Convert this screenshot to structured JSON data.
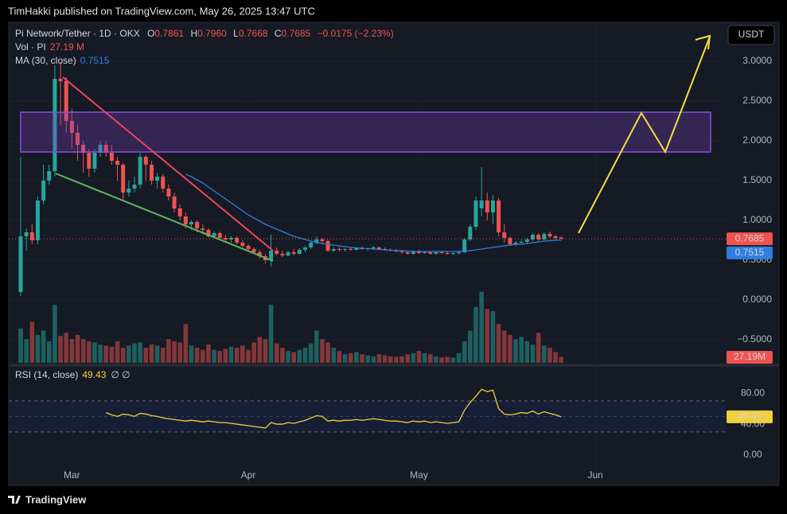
{
  "header": {
    "published": "TimHakki published on TradingView.com, May 26, 2025 13:47 UTC",
    "brand": "TradingView"
  },
  "chart_data": {
    "type": "candlestick",
    "legend": {
      "symbol": "Pi Network/Tether · 1D · OKX",
      "o": "O",
      "o_val": "0.7861",
      "h": "H",
      "h_val": "0.7960",
      "l": "L",
      "l_val": "0.7668",
      "c": "C",
      "c_val": "0.7685",
      "change": "−0.0175 (−2.23%)",
      "vol": "Vol · PI",
      "vol_val": "27.19 M",
      "ma": "MA (30, close)",
      "ma_val": "0.7515",
      "rsi": "RSI (14, close)",
      "rsi_val": "49.43",
      "rsi_icons": "∅ ∅"
    },
    "currency": "USDT",
    "up_color": "#26a69a",
    "down_color": "#ef5350",
    "ma_color": "#2f7fe0",
    "rsi_color": "#f0d03c",
    "candles": [
      [
        0.1,
        1.8,
        0.05,
        0.8
      ],
      [
        0.8,
        0.9,
        0.62,
        0.85
      ],
      [
        0.85,
        0.95,
        0.7,
        0.75
      ],
      [
        0.75,
        1.3,
        0.7,
        1.25
      ],
      [
        1.25,
        1.7,
        1.2,
        1.5
      ],
      [
        1.5,
        1.7,
        1.45,
        1.62
      ],
      [
        1.62,
        2.95,
        1.55,
        2.78
      ],
      [
        2.78,
        2.99,
        2.2,
        2.75
      ],
      [
        2.75,
        2.8,
        2.1,
        2.25
      ],
      [
        2.25,
        2.4,
        1.9,
        2.1
      ],
      [
        2.1,
        2.2,
        1.75,
        1.95
      ],
      [
        1.95,
        2.0,
        1.6,
        1.85
      ],
      [
        1.85,
        1.9,
        1.55,
        1.65
      ],
      [
        1.65,
        1.9,
        1.6,
        1.85
      ],
      [
        1.85,
        2.0,
        1.8,
        1.95
      ],
      [
        1.95,
        2.0,
        1.8,
        1.85
      ],
      [
        1.85,
        1.95,
        1.7,
        1.75
      ],
      [
        1.75,
        1.8,
        1.5,
        1.7
      ],
      [
        1.7,
        1.72,
        1.25,
        1.35
      ],
      [
        1.35,
        1.5,
        1.3,
        1.4
      ],
      [
        1.4,
        1.55,
        1.35,
        1.45
      ],
      [
        1.45,
        1.85,
        1.4,
        1.8
      ],
      [
        1.8,
        1.82,
        1.5,
        1.7
      ],
      [
        1.7,
        1.75,
        1.45,
        1.5
      ],
      [
        1.5,
        1.6,
        1.4,
        1.55
      ],
      [
        1.55,
        1.58,
        1.35,
        1.4
      ],
      [
        1.4,
        1.45,
        1.25,
        1.3
      ],
      [
        1.3,
        1.35,
        1.1,
        1.15
      ],
      [
        1.15,
        1.2,
        1.0,
        1.05
      ],
      [
        1.05,
        1.1,
        0.9,
        0.95
      ],
      [
        0.95,
        1.0,
        0.88,
        0.98
      ],
      [
        0.98,
        1.0,
        0.85,
        0.9
      ],
      [
        0.9,
        0.95,
        0.82,
        0.88
      ],
      [
        0.88,
        0.9,
        0.78,
        0.8
      ],
      [
        0.8,
        0.86,
        0.78,
        0.84
      ],
      [
        0.84,
        0.86,
        0.76,
        0.78
      ],
      [
        0.78,
        0.82,
        0.74,
        0.76
      ],
      [
        0.76,
        0.8,
        0.72,
        0.78
      ],
      [
        0.78,
        0.8,
        0.7,
        0.72
      ],
      [
        0.72,
        0.75,
        0.66,
        0.68
      ],
      [
        0.68,
        0.7,
        0.62,
        0.64
      ],
      [
        0.64,
        0.66,
        0.58,
        0.6
      ],
      [
        0.6,
        0.63,
        0.52,
        0.55
      ],
      [
        0.55,
        0.58,
        0.46,
        0.5
      ],
      [
        0.5,
        0.82,
        0.42,
        0.62
      ],
      [
        0.62,
        0.66,
        0.56,
        0.58
      ],
      [
        0.58,
        0.62,
        0.54,
        0.56
      ],
      [
        0.56,
        0.62,
        0.55,
        0.6
      ],
      [
        0.6,
        0.64,
        0.56,
        0.58
      ],
      [
        0.58,
        0.65,
        0.57,
        0.63
      ],
      [
        0.63,
        0.68,
        0.6,
        0.66
      ],
      [
        0.66,
        0.75,
        0.64,
        0.72
      ],
      [
        0.72,
        0.8,
        0.7,
        0.76
      ],
      [
        0.76,
        0.78,
        0.7,
        0.74
      ],
      [
        0.74,
        0.76,
        0.6,
        0.62
      ],
      [
        0.62,
        0.66,
        0.6,
        0.64
      ],
      [
        0.64,
        0.66,
        0.61,
        0.63
      ],
      [
        0.63,
        0.65,
        0.61,
        0.64
      ],
      [
        0.64,
        0.66,
        0.62,
        0.63
      ],
      [
        0.63,
        0.66,
        0.62,
        0.65
      ],
      [
        0.65,
        0.67,
        0.63,
        0.64
      ],
      [
        0.64,
        0.66,
        0.62,
        0.65
      ],
      [
        0.65,
        0.68,
        0.63,
        0.66
      ],
      [
        0.66,
        0.67,
        0.63,
        0.64
      ],
      [
        0.64,
        0.66,
        0.62,
        0.63
      ],
      [
        0.63,
        0.65,
        0.61,
        0.62
      ],
      [
        0.62,
        0.64,
        0.6,
        0.61
      ],
      [
        0.61,
        0.63,
        0.58,
        0.6
      ],
      [
        0.6,
        0.62,
        0.57,
        0.58
      ],
      [
        0.58,
        0.62,
        0.57,
        0.61
      ],
      [
        0.61,
        0.63,
        0.58,
        0.59
      ],
      [
        0.59,
        0.62,
        0.58,
        0.6
      ],
      [
        0.6,
        0.61,
        0.57,
        0.58
      ],
      [
        0.58,
        0.61,
        0.57,
        0.6
      ],
      [
        0.6,
        0.62,
        0.58,
        0.59
      ],
      [
        0.59,
        0.61,
        0.57,
        0.58
      ],
      [
        0.58,
        0.6,
        0.56,
        0.59
      ],
      [
        0.59,
        0.62,
        0.57,
        0.6
      ],
      [
        0.6,
        0.78,
        0.59,
        0.76
      ],
      [
        0.76,
        0.95,
        0.74,
        0.92
      ],
      [
        0.92,
        1.3,
        0.88,
        1.25
      ],
      [
        1.15,
        1.67,
        1.05,
        1.25
      ],
      [
        1.25,
        1.35,
        1.0,
        1.1
      ],
      [
        1.1,
        1.32,
        0.95,
        1.25
      ],
      [
        1.25,
        1.28,
        0.8,
        0.85
      ],
      [
        0.85,
        0.95,
        0.72,
        0.78
      ],
      [
        0.78,
        0.8,
        0.68,
        0.7
      ],
      [
        0.7,
        0.74,
        0.68,
        0.72
      ],
      [
        0.72,
        0.76,
        0.7,
        0.73
      ],
      [
        0.73,
        0.78,
        0.71,
        0.76
      ],
      [
        0.76,
        0.84,
        0.74,
        0.82
      ],
      [
        0.82,
        0.84,
        0.74,
        0.76
      ],
      [
        0.76,
        0.85,
        0.75,
        0.83
      ],
      [
        0.83,
        0.86,
        0.78,
        0.8
      ],
      [
        0.8,
        0.82,
        0.76,
        0.78
      ],
      [
        0.7861,
        0.796,
        0.7668,
        0.7685
      ]
    ],
    "volume": [
      160,
      110,
      190,
      130,
      150,
      100,
      270,
      125,
      140,
      110,
      130,
      110,
      100,
      95,
      85,
      80,
      75,
      100,
      70,
      80,
      90,
      95,
      70,
      85,
      80,
      70,
      110,
      100,
      95,
      180,
      80,
      70,
      60,
      85,
      60,
      55,
      65,
      75,
      70,
      80,
      60,
      95,
      120,
      110,
      270,
      90,
      70,
      55,
      50,
      60,
      70,
      90,
      150,
      110,
      95,
      70,
      55,
      40,
      45,
      50,
      40,
      35,
      30,
      40,
      35,
      30,
      28,
      30,
      40,
      45,
      55,
      45,
      40,
      30,
      25,
      28,
      25,
      45,
      100,
      150,
      260,
      330,
      250,
      240,
      180,
      150,
      130,
      110,
      120,
      100,
      85,
      140,
      80,
      70,
      50,
      27.19
    ],
    "volume_labels": {
      "95": "27.19M"
    },
    "vol_lim": [
      0,
      340
    ],
    "ma": [
      null,
      null,
      null,
      null,
      null,
      null,
      null,
      null,
      null,
      null,
      null,
      null,
      null,
      null,
      null,
      null,
      null,
      null,
      null,
      null,
      null,
      null,
      null,
      null,
      null,
      null,
      null,
      null,
      null,
      1.58,
      1.55,
      1.51,
      1.47,
      1.42,
      1.37,
      1.32,
      1.27,
      1.22,
      1.17,
      1.12,
      1.07,
      1.03,
      0.99,
      0.95,
      0.92,
      0.89,
      0.86,
      0.83,
      0.8,
      0.78,
      0.76,
      0.74,
      0.72,
      0.71,
      0.7,
      0.69,
      0.68,
      0.67,
      0.66,
      0.655,
      0.65,
      0.645,
      0.64,
      0.635,
      0.63,
      0.625,
      0.62,
      0.62,
      0.615,
      0.61,
      0.61,
      0.61,
      0.61,
      0.61,
      0.61,
      0.61,
      0.61,
      0.61,
      0.615,
      0.62,
      0.63,
      0.64,
      0.65,
      0.66,
      0.67,
      0.68,
      0.69,
      0.7,
      0.7,
      0.71,
      0.72,
      0.73,
      0.74,
      0.745,
      0.75,
      0.7515
    ],
    "rsi": [
      null,
      null,
      null,
      null,
      null,
      null,
      null,
      null,
      null,
      null,
      null,
      null,
      null,
      null,
      null,
      55,
      52,
      50,
      53,
      52,
      50,
      54,
      53,
      51,
      50,
      48,
      47,
      46,
      45,
      44,
      45,
      44,
      43,
      44,
      43,
      42,
      42,
      41,
      40,
      39,
      38,
      37,
      36,
      35,
      42,
      40,
      40,
      42,
      41,
      43,
      45,
      48,
      51,
      50,
      44,
      45,
      44,
      45,
      45,
      46,
      45,
      46,
      47,
      46,
      45,
      44,
      44,
      43,
      42,
      44,
      43,
      44,
      42,
      43,
      42,
      41,
      42,
      43,
      58,
      68,
      76,
      85,
      82,
      84,
      60,
      53,
      52,
      53,
      55,
      54,
      57,
      53,
      56,
      54,
      52,
      49.43
    ],
    "rsi_levels": [
      30,
      50,
      70
    ],
    "ylim": [
      -0.79,
      3.49
    ],
    "yticks": [
      {
        "value": -0.5,
        "label": "−0.5000"
      },
      {
        "value": 0,
        "label": "0.0000"
      },
      {
        "value": 0.5,
        "label": "0.5000"
      },
      {
        "value": 1,
        "label": "1.0000"
      },
      {
        "value": 1.5,
        "label": "1.5000"
      },
      {
        "value": 2,
        "label": "2.0000"
      },
      {
        "value": 2.5,
        "label": "2.5000"
      },
      {
        "value": 3,
        "label": "3.0000"
      }
    ],
    "rsi_lim": [
      -39,
      113
    ],
    "rsi_ticks": [
      {
        "value": 0,
        "label": "0.00"
      },
      {
        "value": 40,
        "label": "40.00"
      },
      {
        "value": 80,
        "label": "80.00"
      }
    ],
    "xticks": [
      {
        "value": 9,
        "label": "Mar"
      },
      {
        "value": 40,
        "label": "Apr"
      },
      {
        "value": 70,
        "label": "May"
      },
      {
        "value": 101,
        "label": "Jun"
      }
    ]
  }
}
